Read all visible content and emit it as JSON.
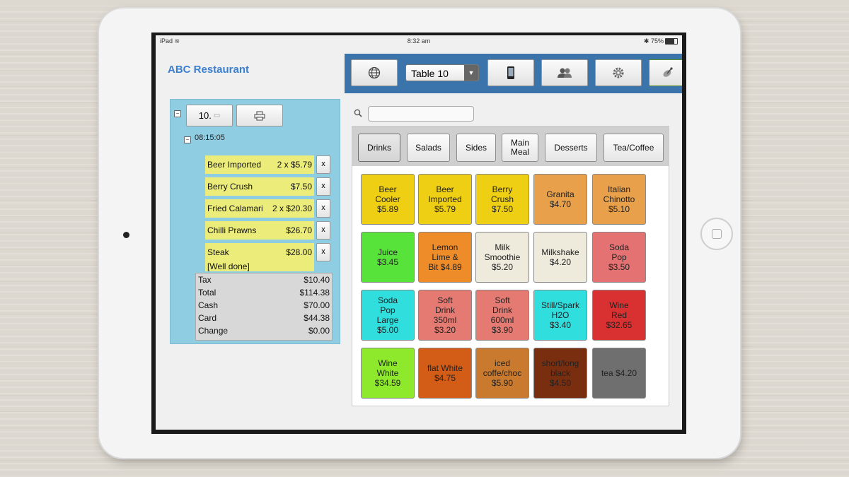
{
  "status_bar": {
    "device": "iPad",
    "wifi_icon": "wifi-icon",
    "time": "8:32 am",
    "bluetooth_icon": "bluetooth-icon",
    "battery": "75%"
  },
  "app": {
    "title": "ABC Restaurant"
  },
  "toolbar": {
    "globe_icon": "globe-icon",
    "table_select": "Table 10",
    "phone_icon": "phone-icon",
    "users_icon": "users-icon",
    "settings_icon": "gear-icon",
    "satellite_icon": "satellite-icon"
  },
  "order": {
    "table_no": "10.",
    "printer_icon": "printer-icon",
    "time": "08:15:05",
    "items": [
      {
        "name": "Beer Imported",
        "price": "2 x $5.79",
        "note": ""
      },
      {
        "name": "Berry Crush",
        "price": "$7.50",
        "note": ""
      },
      {
        "name": "Fried Calamari",
        "price": "2 x $20.30",
        "note": ""
      },
      {
        "name": "Chilli Prawns",
        "price": "$26.70",
        "note": ""
      },
      {
        "name": "Steak",
        "price": "$28.00",
        "note": "[Well done]"
      }
    ],
    "remove_label": "x",
    "totals": [
      {
        "label": "Tax",
        "value": "$10.40"
      },
      {
        "label": "Total",
        "value": "$114.38"
      },
      {
        "label": "Cash",
        "value": "$70.00"
      },
      {
        "label": "Card",
        "value": "$44.38"
      },
      {
        "label": "Change",
        "value": "$0.00"
      }
    ]
  },
  "search": {
    "icon": "search-icon",
    "placeholder": ""
  },
  "categories": [
    {
      "label": "Drinks",
      "active": true
    },
    {
      "label": "Salads"
    },
    {
      "label": "Sides"
    },
    {
      "label": "Main Meal"
    },
    {
      "label": "Desserts"
    },
    {
      "label": "Tea/Coffee"
    }
  ],
  "menu_items": [
    {
      "lines": [
        "Beer",
        "Cooler",
        "$5.89"
      ],
      "color": "#efcf14"
    },
    {
      "lines": [
        "Beer",
        "Imported",
        "$5.79"
      ],
      "color": "#efcf14"
    },
    {
      "lines": [
        "Berry",
        "Crush",
        "$7.50"
      ],
      "color": "#efcf14"
    },
    {
      "lines": [
        "Granita",
        "$4.70"
      ],
      "color": "#e8a04a"
    },
    {
      "lines": [
        "Italian",
        "Chinotto",
        "$5.10"
      ],
      "color": "#e8a04a"
    },
    {
      "lines": [
        "Juice",
        "$3.45"
      ],
      "color": "#58e33a"
    },
    {
      "lines": [
        "Lemon",
        "Lime &",
        "Bit $4.89"
      ],
      "color": "#ef8c2a"
    },
    {
      "lines": [
        "Milk",
        "Smoothie",
        "$5.20"
      ],
      "color": "#eeebdd"
    },
    {
      "lines": [
        "Milkshake",
        "$4.20"
      ],
      "color": "#eeebdd"
    },
    {
      "lines": [
        "Soda",
        "Pop",
        "$3.50"
      ],
      "color": "#e47272"
    },
    {
      "lines": [
        "Soda",
        "Pop",
        "Large",
        "$5.00"
      ],
      "color": "#31dede"
    },
    {
      "lines": [
        "Soft",
        "Drink",
        "350ml",
        "$3.20"
      ],
      "color": "#e47a72"
    },
    {
      "lines": [
        "Soft",
        "Drink",
        "600ml",
        "$3.90"
      ],
      "color": "#e47a72"
    },
    {
      "lines": [
        "Still/Spark",
        "H2O",
        "$3.40"
      ],
      "color": "#31dede"
    },
    {
      "lines": [
        "Wine",
        "Red",
        "$32.65"
      ],
      "color": "#d93131"
    },
    {
      "lines": [
        "Wine",
        "White",
        "$34.59"
      ],
      "color": "#8ee82c"
    },
    {
      "lines": [
        "flat White",
        "$4.75"
      ],
      "color": "#d35c17"
    },
    {
      "lines": [
        "iced",
        "coffe/choc",
        "$5.90"
      ],
      "color": "#c97a2e"
    },
    {
      "lines": [
        "short/long",
        "black",
        "$4.50"
      ],
      "color": "#7a2e10"
    },
    {
      "lines": [
        "tea $4.20"
      ],
      "color": "#6f6f6f"
    }
  ]
}
